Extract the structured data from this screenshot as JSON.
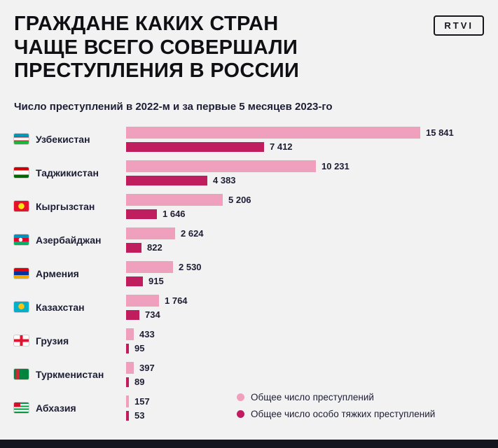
{
  "header": {
    "title_lines": [
      "ГРАЖДАНЕ КАКИХ СТРАН",
      "ЧАЩЕ ВСЕГО СОВЕРШАЛИ",
      "ПРЕСТУПЛЕНИЯ В РОССИИ"
    ],
    "logo": "RTVI",
    "subtitle": "Число преступлений в 2022-м и за первые 5 месяцев 2023-го"
  },
  "chart_data": {
    "type": "bar",
    "orientation": "horizontal",
    "title": "ГРАЖДАНЕ КАКИХ СТРАН ЧАЩЕ ВСЕГО СОВЕРШАЛИ ПРЕСТУПЛЕНИЯ В РОССИИ",
    "subtitle": "Число преступлений в 2022-м и за первые 5 месяцев 2023-го",
    "xlim": [
      0,
      15841
    ],
    "legend_position": "bottom-right",
    "series": [
      {
        "name": "Общее число преступлений",
        "color": "#f0a0bd"
      },
      {
        "name": "Общее число особо тяжких преступлений",
        "color": "#c01d5e"
      }
    ],
    "rows": [
      {
        "country": "Узбекистан",
        "flag": "uzbekistan",
        "total": 15841,
        "total_label": "15 841",
        "grave": 7412,
        "grave_label": "7 412"
      },
      {
        "country": "Таджикистан",
        "flag": "tajikistan",
        "total": 10231,
        "total_label": "10 231",
        "grave": 4383,
        "grave_label": "4 383"
      },
      {
        "country": "Кыргызстан",
        "flag": "kyrgyzstan",
        "total": 5206,
        "total_label": "5 206",
        "grave": 1646,
        "grave_label": "1 646"
      },
      {
        "country": "Азербайджан",
        "flag": "azerbaijan",
        "total": 2624,
        "total_label": "2 624",
        "grave": 822,
        "grave_label": "822"
      },
      {
        "country": "Армения",
        "flag": "armenia",
        "total": 2530,
        "total_label": "2 530",
        "grave": 915,
        "grave_label": "915"
      },
      {
        "country": "Казахстан",
        "flag": "kazakhstan",
        "total": 1764,
        "total_label": "1 764",
        "grave": 734,
        "grave_label": "734"
      },
      {
        "country": "Грузия",
        "flag": "georgia",
        "total": 433,
        "total_label": "433",
        "grave": 95,
        "grave_label": "95"
      },
      {
        "country": "Туркменистан",
        "flag": "turkmenistan",
        "total": 397,
        "total_label": "397",
        "grave": 89,
        "grave_label": "89"
      },
      {
        "country": "Абхазия",
        "flag": "abkhazia",
        "total": 157,
        "total_label": "157",
        "grave": 53,
        "grave_label": "53"
      }
    ]
  }
}
